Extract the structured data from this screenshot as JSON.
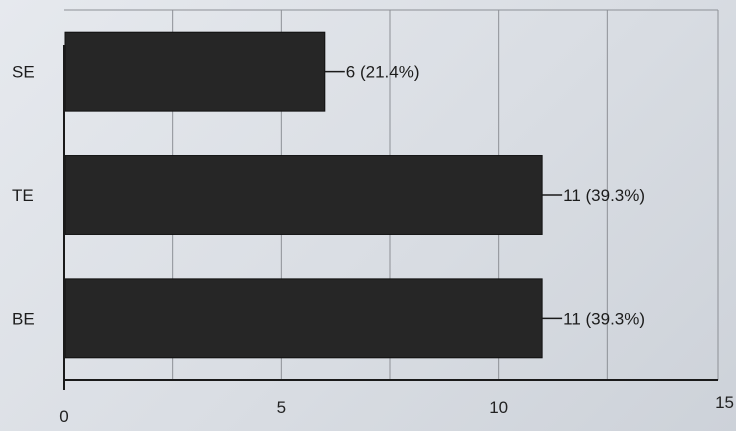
{
  "chart_data": {
    "type": "bar",
    "orientation": "horizontal",
    "categories": [
      "SE",
      "TE",
      "BE"
    ],
    "values": [
      6,
      11,
      11
    ],
    "data_labels": [
      "6 (21.4%)",
      "11 (39.3%)",
      "11 (39.3%)"
    ],
    "title": "",
    "xlabel": "",
    "ylabel": "",
    "xlim": [
      0,
      15
    ],
    "x_ticks": [
      0,
      5,
      10,
      15
    ],
    "grid": true,
    "bar_color": "#262626",
    "background_color": "#dfe3e8"
  }
}
